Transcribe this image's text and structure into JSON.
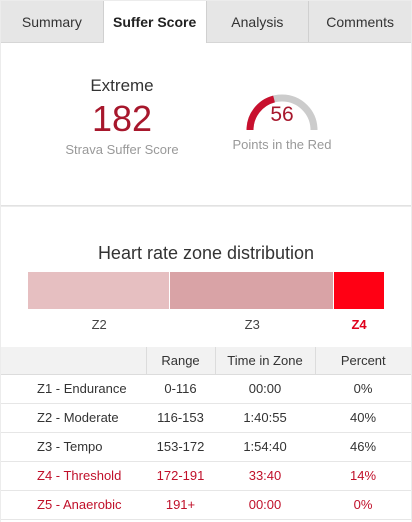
{
  "tabs": [
    {
      "label": "Summary",
      "active": false
    },
    {
      "label": "Suffer Score",
      "active": true
    },
    {
      "label": "Analysis",
      "active": false
    },
    {
      "label": "Comments",
      "active": false
    }
  ],
  "score": {
    "level": "Extreme",
    "value": "182",
    "caption": "Strava Suffer Score"
  },
  "gauge": {
    "value": "56",
    "caption": "Points in the Red",
    "colors": {
      "fill": "#c8102e",
      "track": "#cccccc"
    }
  },
  "distribution": {
    "title": "Heart rate zone distribution",
    "zones": [
      {
        "label": "Z2",
        "percent": 40,
        "color": "#e6bfc1",
        "hot": false
      },
      {
        "label": "Z3",
        "percent": 46,
        "color": "#d9a3a6",
        "hot": false
      },
      {
        "label": "Z4",
        "percent": 14,
        "color": "#ff0014",
        "hot": true
      }
    ]
  },
  "table": {
    "headers": [
      "",
      "Range",
      "Time in Zone",
      "Percent"
    ],
    "rows": [
      {
        "zone": "Z1 - Endurance",
        "range": "0-116",
        "time": "00:00",
        "percent": "0%",
        "hot": false
      },
      {
        "zone": "Z2 - Moderate",
        "range": "116-153",
        "time": "1:40:55",
        "percent": "40%",
        "hot": false
      },
      {
        "zone": "Z3 - Tempo",
        "range": "153-172",
        "time": "1:54:40",
        "percent": "46%",
        "hot": false
      },
      {
        "zone": "Z4 - Threshold",
        "range": "172-191",
        "time": "33:40",
        "percent": "14%",
        "hot": true
      },
      {
        "zone": "Z5 - Anaerobic",
        "range": "191+",
        "time": "00:00",
        "percent": "0%",
        "hot": true
      }
    ]
  }
}
